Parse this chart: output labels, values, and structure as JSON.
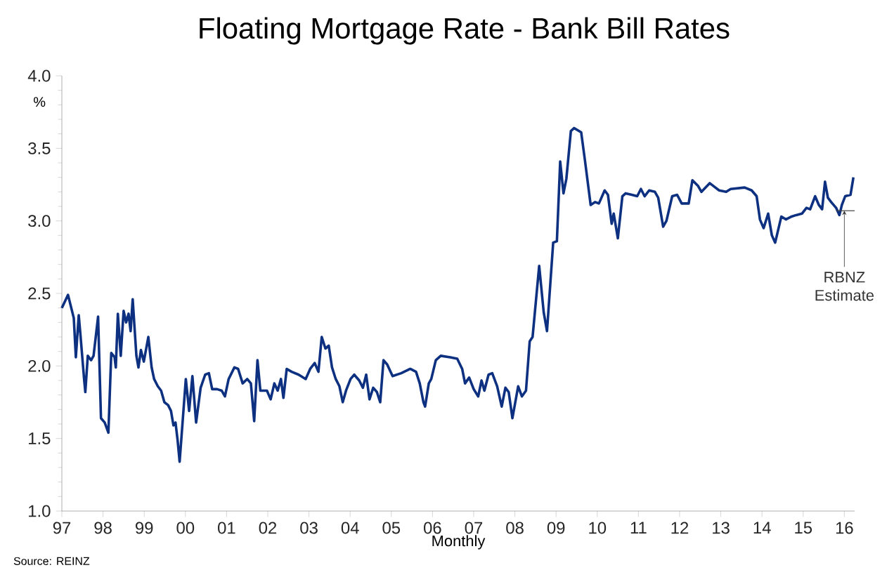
{
  "chart_data": {
    "type": "line",
    "title": "Floating Mortgage Rate - Bank Bill Rates",
    "xlabel": "Monthly",
    "ylabel": "%",
    "xlim": [
      1997,
      2016.25
    ],
    "ylim": [
      1.0,
      4.0
    ],
    "yticks": [
      {
        "value": 1.0,
        "label": "1.0"
      },
      {
        "value": 1.5,
        "label": "1.5"
      },
      {
        "value": 2.0,
        "label": "2.0"
      },
      {
        "value": 2.5,
        "label": "2.5"
      },
      {
        "value": 3.0,
        "label": "3.0"
      },
      {
        "value": 3.5,
        "label": "3.5"
      },
      {
        "value": 4.0,
        "label": "4.0"
      }
    ],
    "xticks": [
      {
        "value": 1997,
        "label": "97"
      },
      {
        "value": 1998,
        "label": "98"
      },
      {
        "value": 1999,
        "label": "99"
      },
      {
        "value": 2000,
        "label": "00"
      },
      {
        "value": 2001,
        "label": "01"
      },
      {
        "value": 2002,
        "label": "02"
      },
      {
        "value": 2003,
        "label": "03"
      },
      {
        "value": 2004,
        "label": "04"
      },
      {
        "value": 2005,
        "label": "05"
      },
      {
        "value": 2006,
        "label": "06"
      },
      {
        "value": 2007,
        "label": "07"
      },
      {
        "value": 2008,
        "label": "08"
      },
      {
        "value": 2009,
        "label": "09"
      },
      {
        "value": 2010,
        "label": "10"
      },
      {
        "value": 2011,
        "label": "11"
      },
      {
        "value": 2012,
        "label": "12"
      },
      {
        "value": 2013,
        "label": "13"
      },
      {
        "value": 2014,
        "label": "14"
      },
      {
        "value": 2015,
        "label": "15"
      },
      {
        "value": 2016,
        "label": "16"
      }
    ],
    "series": [
      {
        "color": "#0d3180",
        "x": [
          1997.0,
          1997.15,
          1997.29,
          1997.34,
          1997.41,
          1997.45,
          1997.54,
          1997.57,
          1997.63,
          1997.71,
          1997.77,
          1997.88,
          1997.95,
          1998.04,
          1998.13,
          1998.2,
          1998.28,
          1998.31,
          1998.36,
          1998.43,
          1998.5,
          1998.56,
          1998.62,
          1998.67,
          1998.72,
          1998.81,
          1998.86,
          1998.92,
          1998.99,
          1999.1,
          1999.18,
          1999.24,
          1999.33,
          1999.41,
          1999.49,
          1999.58,
          1999.65,
          1999.71,
          1999.76,
          1999.81,
          1999.86,
          2000.01,
          2000.09,
          2000.17,
          2000.26,
          2000.37,
          2000.48,
          2000.57,
          2000.65,
          2000.77,
          2000.88,
          2000.96,
          2001.05,
          2001.19,
          2001.28,
          2001.39,
          2001.5,
          2001.59,
          2001.67,
          2001.75,
          2001.82,
          2001.98,
          2002.07,
          2002.16,
          2002.24,
          2002.32,
          2002.38,
          2002.46,
          2002.58,
          2002.75,
          2002.92,
          2003.03,
          2003.14,
          2003.23,
          2003.31,
          2003.4,
          2003.48,
          2003.56,
          2003.65,
          2003.74,
          2003.82,
          2003.9,
          2004.01,
          2004.1,
          2004.22,
          2004.31,
          2004.39,
          2004.47,
          2004.56,
          2004.65,
          2004.73,
          2004.81,
          2004.9,
          2005.03,
          2005.24,
          2005.46,
          2005.6,
          2005.69,
          2005.78,
          2005.82,
          2005.91,
          2005.97,
          2006.08,
          2006.2,
          2006.43,
          2006.6,
          2006.72,
          2006.79,
          2006.89,
          2007.0,
          2007.11,
          2007.19,
          2007.26,
          2007.36,
          2007.45,
          2007.57,
          2007.68,
          2007.77,
          2007.85,
          2007.94,
          2008.08,
          2008.17,
          2008.27,
          2008.36,
          2008.43,
          2008.59,
          2008.7,
          2008.78,
          2008.93,
          2009.02,
          2009.1,
          2009.18,
          2009.25,
          2009.36,
          2009.44,
          2009.61,
          2009.7,
          2009.84,
          2009.95,
          2010.04,
          2010.18,
          2010.26,
          2010.35,
          2010.4,
          2010.5,
          2010.61,
          2010.69,
          2010.84,
          2010.97,
          2011.06,
          2011.15,
          2011.26,
          2011.4,
          2011.48,
          2011.6,
          2011.68,
          2011.82,
          2011.94,
          2012.05,
          2012.22,
          2012.31,
          2012.45,
          2012.53,
          2012.73,
          2012.96,
          2013.13,
          2013.24,
          2013.58,
          2013.75,
          2013.87,
          2013.95,
          2014.04,
          2014.15,
          2014.24,
          2014.32,
          2014.47,
          2014.58,
          2014.72,
          2014.83,
          2014.97,
          2015.08,
          2015.17,
          2015.29,
          2015.38,
          2015.46,
          2015.53,
          2015.6,
          2015.68,
          2015.8,
          2015.88,
          2015.94,
          2016.02,
          2016.15,
          2016.22
        ],
        "values": [
          2.4,
          2.49,
          2.33,
          2.06,
          2.35,
          2.22,
          1.91,
          1.82,
          2.07,
          2.04,
          2.07,
          2.34,
          1.64,
          1.61,
          1.54,
          2.09,
          2.06,
          1.99,
          2.36,
          2.07,
          2.38,
          2.3,
          2.36,
          2.24,
          2.46,
          2.07,
          1.99,
          2.11,
          2.03,
          2.2,
          1.99,
          1.91,
          1.86,
          1.83,
          1.75,
          1.73,
          1.69,
          1.59,
          1.61,
          1.49,
          1.34,
          1.91,
          1.69,
          1.93,
          1.61,
          1.85,
          1.94,
          1.95,
          1.84,
          1.84,
          1.83,
          1.79,
          1.91,
          1.99,
          1.98,
          1.88,
          1.91,
          1.88,
          1.62,
          2.04,
          1.83,
          1.83,
          1.77,
          1.88,
          1.83,
          1.91,
          1.78,
          1.98,
          1.96,
          1.94,
          1.91,
          1.98,
          2.02,
          1.96,
          2.2,
          2.12,
          2.14,
          1.99,
          1.91,
          1.86,
          1.75,
          1.83,
          1.91,
          1.94,
          1.9,
          1.85,
          1.94,
          1.77,
          1.85,
          1.82,
          1.75,
          2.04,
          2.01,
          1.93,
          1.95,
          1.98,
          1.96,
          1.88,
          1.75,
          1.72,
          1.88,
          1.91,
          2.04,
          2.07,
          2.06,
          2.05,
          1.98,
          1.88,
          1.92,
          1.84,
          1.79,
          1.9,
          1.83,
          1.94,
          1.95,
          1.86,
          1.72,
          1.85,
          1.82,
          1.64,
          1.86,
          1.79,
          1.83,
          2.17,
          2.2,
          2.69,
          2.37,
          2.24,
          2.85,
          2.86,
          3.41,
          3.19,
          3.29,
          3.62,
          3.64,
          3.61,
          3.42,
          3.11,
          3.13,
          3.12,
          3.21,
          3.18,
          2.98,
          3.05,
          2.88,
          3.17,
          3.19,
          3.18,
          3.17,
          3.22,
          3.17,
          3.21,
          3.2,
          3.16,
          2.96,
          3.0,
          3.17,
          3.18,
          3.12,
          3.12,
          3.28,
          3.24,
          3.2,
          3.26,
          3.21,
          3.2,
          3.22,
          3.23,
          3.21,
          3.17,
          3.01,
          2.95,
          3.05,
          2.9,
          2.85,
          3.03,
          3.01,
          3.03,
          3.04,
          3.05,
          3.09,
          3.08,
          3.17,
          3.11,
          3.08,
          3.27,
          3.16,
          3.13,
          3.09,
          3.04,
          3.11,
          3.17,
          3.18,
          3.3
        ]
      },
      {
        "color": "#404040",
        "x": [
          2015.8,
          2016.25
        ],
        "values": [
          3.07,
          3.07
        ]
      }
    ],
    "annotations": [
      "Source: REINZ",
      {
        "text": "RBNZ Estimate",
        "x": 2016.0,
        "y": 3.07
      }
    ]
  }
}
